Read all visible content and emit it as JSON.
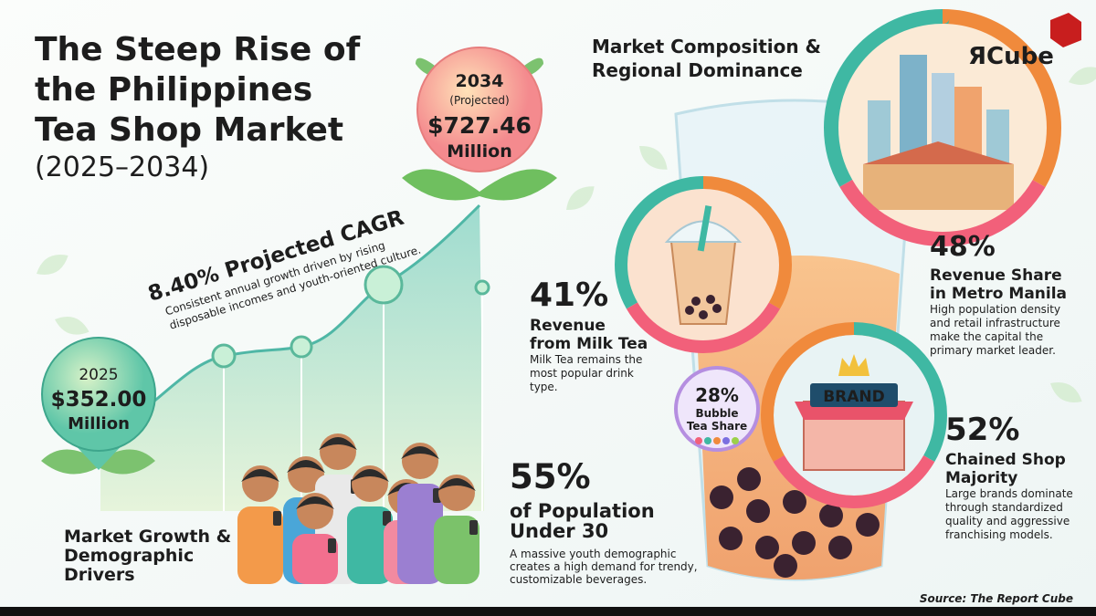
{
  "title": [
    "The Steep Rise of",
    "the Philippines",
    "Tea Shop Market"
  ],
  "subtitle": "(2025–2034)",
  "logo": "ЯCube",
  "growth": {
    "start": {
      "year": "2025",
      "value": "$352.00",
      "unit": "Million"
    },
    "end": {
      "year": "2034",
      "note": "(Projected)",
      "value": "$727.46",
      "unit": "Million"
    },
    "cagr": "8.40% Projected CAGR",
    "cagr_note": [
      "Consistent annual growth driven by rising",
      "disposable incomes and youth-oriented culture."
    ],
    "section": [
      "Market Growth &",
      "Demographic",
      "Drivers"
    ]
  },
  "population": {
    "stat": "55%",
    "label": [
      "of Population",
      "Under 30"
    ],
    "note": [
      "A massive youth demographic",
      "creates a high demand for trendy,",
      "customizable beverages."
    ]
  },
  "composition": {
    "title": [
      "Market Composition &",
      "Regional Dominance"
    ],
    "milk_tea": {
      "stat": "41%",
      "label": [
        "Revenue",
        "from Milk Tea"
      ],
      "note": [
        "Milk Tea remains the",
        "most popular drink",
        "type."
      ]
    },
    "metro": {
      "stat": "48%",
      "label": [
        "Revenue Share",
        "in Metro Manila"
      ],
      "note": [
        "High population density",
        "and retail infrastructure",
        "make the capital the",
        "primary market leader."
      ]
    },
    "bubble": {
      "stat": "28%",
      "label": [
        "Bubble",
        "Tea Share"
      ]
    },
    "chained": {
      "stat": "52%",
      "label": [
        "Chained Shop",
        "Majority"
      ],
      "note": [
        "Large brands dominate",
        "through standardized",
        "quality and aggressive",
        "franchising models."
      ]
    },
    "brand": "BRAND"
  },
  "source": "Source: The Report Cube"
}
